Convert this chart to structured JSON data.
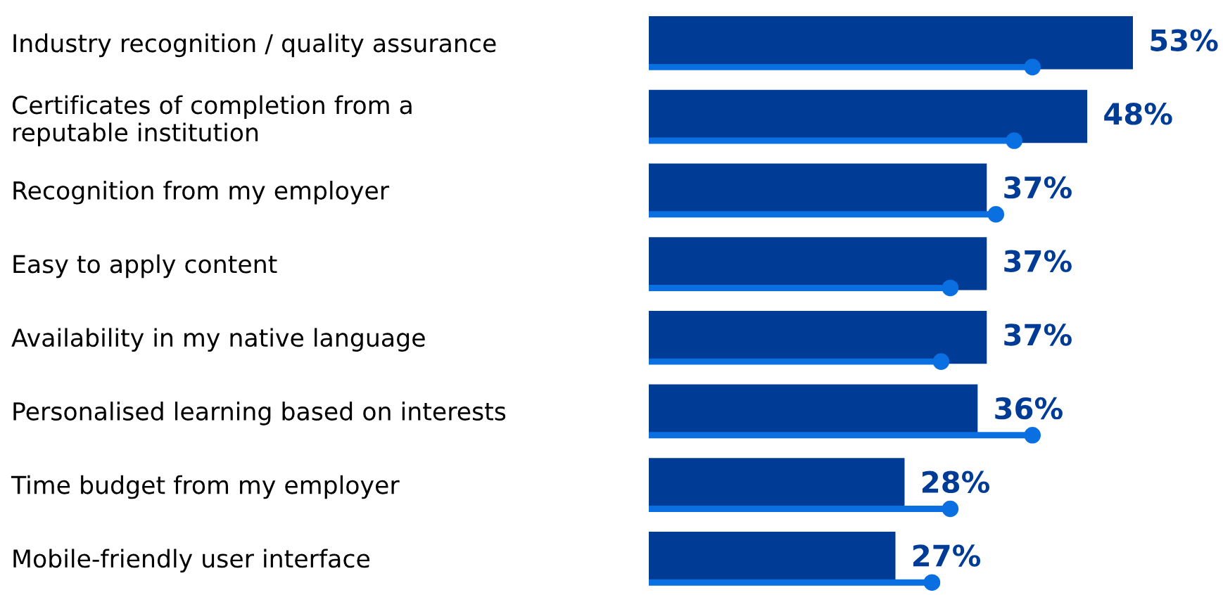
{
  "chart_data": {
    "type": "bar",
    "orientation": "horizontal",
    "categories": [
      "Industry recognition / quality assurance",
      "Certificates of completion from a\nreputable institution",
      "Recognition from my employer",
      "Easy to apply content",
      "Availability in my native language",
      "Personalised learning based on interests",
      "Time budget from my employer",
      "Mobile-friendly user interface"
    ],
    "series": [
      {
        "color": "#003c96",
        "values": [
          53,
          48,
          37,
          37,
          37,
          36,
          28,
          27
        ],
        "value_labels": [
          "53%",
          "48%",
          "37%",
          "37%",
          "37%",
          "36%",
          "28%",
          "27%"
        ]
      },
      {
        "type": "lollipop",
        "color": "#0a6fe0",
        "values": [
          42,
          40,
          38,
          33,
          32,
          42,
          33,
          31
        ]
      }
    ],
    "tick_labels": "y",
    "grid": false,
    "legend": false
  }
}
